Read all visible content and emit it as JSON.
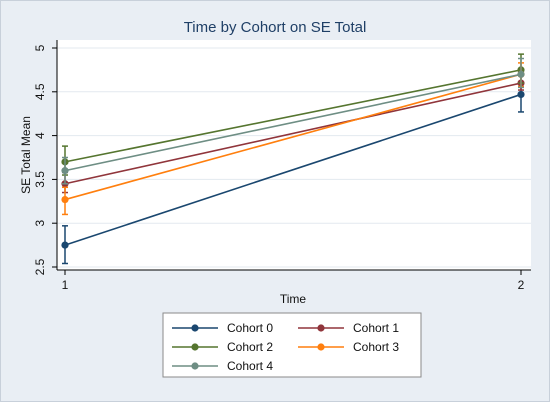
{
  "chart_data": {
    "type": "line",
    "title": "Time by Cohort on SE Total",
    "xlabel": "Time",
    "ylabel": "SE Total Mean",
    "x": [
      1,
      2
    ],
    "x_ticks": [
      "1",
      "2"
    ],
    "y_ticks": [
      "2.5",
      "3",
      "3.5",
      "4",
      "4.5",
      "5"
    ],
    "ylim": [
      2.5,
      5.0
    ],
    "grid": true,
    "error_bars": true,
    "legend_position": "bottom",
    "series": [
      {
        "name": "Cohort 0",
        "color": "#1a476f",
        "values": [
          2.75,
          4.47
        ],
        "lower": [
          2.54,
          4.27
        ],
        "upper": [
          2.97,
          4.6
        ]
      },
      {
        "name": "Cohort 1",
        "color": "#90353b",
        "values": [
          3.45,
          4.6
        ],
        "lower": [
          3.35,
          4.52
        ],
        "upper": [
          3.58,
          4.7
        ]
      },
      {
        "name": "Cohort 2",
        "color": "#55752f",
        "values": [
          3.7,
          4.75
        ],
        "lower": [
          3.55,
          4.6
        ],
        "upper": [
          3.88,
          4.93
        ]
      },
      {
        "name": "Cohort 3",
        "color": "#ff7f0e",
        "values": [
          3.27,
          4.7
        ],
        "lower": [
          3.1,
          4.56
        ],
        "upper": [
          3.41,
          4.83
        ]
      },
      {
        "name": "Cohort 4",
        "color": "#6e8e84",
        "values": [
          3.6,
          4.7
        ],
        "lower": [
          3.45,
          4.55
        ],
        "upper": [
          3.75,
          4.88
        ]
      }
    ]
  }
}
